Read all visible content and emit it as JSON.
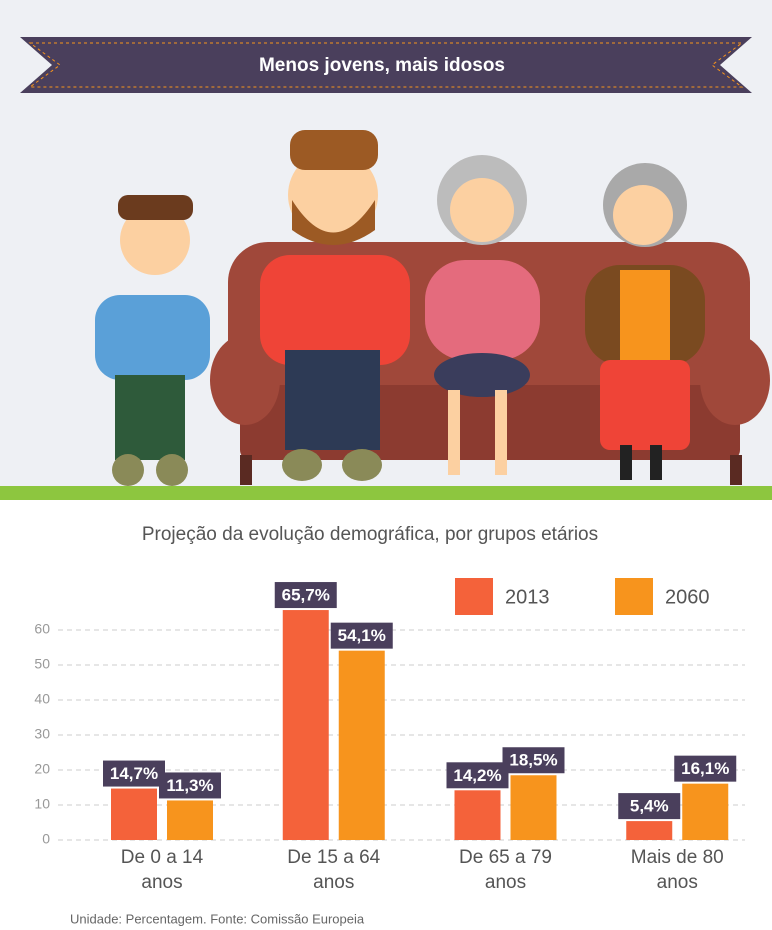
{
  "header": {
    "title": "Menos jovens, mais idosos"
  },
  "chart_data": {
    "type": "bar",
    "title": "Projeção da evolução demográfica, por grupos etários",
    "categories": [
      "De 0 a 14 anos",
      "De 15 a 64 anos",
      "De 65 a 79 anos",
      "Mais de 80 anos"
    ],
    "series": [
      {
        "name": "2013",
        "color": "#f4623a",
        "values": [
          14.7,
          65.7,
          14.2,
          5.4
        ],
        "value_labels": [
          "14,7%",
          "65,7%",
          "14,2%",
          "5,4%"
        ]
      },
      {
        "name": "2060",
        "color": "#f7941d",
        "values": [
          11.3,
          54.1,
          18.5,
          16.1
        ],
        "value_labels": [
          "11,3%",
          "54,1%",
          "18,5%",
          "16,1%"
        ]
      }
    ],
    "ylim": [
      0,
      60
    ],
    "yticks": [
      0,
      10,
      20,
      30,
      40,
      50,
      60
    ],
    "grid": true
  },
  "footer": {
    "source": "Unidade: Percentagem. Fonte: Comissão Europeia"
  }
}
